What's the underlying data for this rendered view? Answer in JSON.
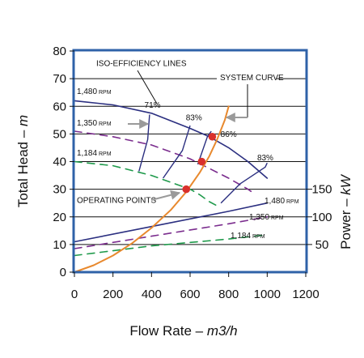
{
  "chart_data": {
    "type": "line",
    "xlabel": {
      "main": "Flow Rate – ",
      "unit": "m3/h"
    },
    "ylabel_left": {
      "main": "Total Head – ",
      "unit": "m"
    },
    "ylabel_right": {
      "main": "Power – ",
      "unit": "kW"
    },
    "xlim": [
      0,
      1200
    ],
    "ylim": [
      0,
      80
    ],
    "x_ticks": [
      "0",
      "200",
      "400",
      "600",
      "800",
      "1000",
      "1200"
    ],
    "y_ticks_left": [
      "0",
      "10",
      "20",
      "30",
      "40",
      "50",
      "60",
      "70",
      "80"
    ],
    "y_ticks_right": [
      {
        "label": "50",
        "y": 10
      },
      {
        "label": "100",
        "y": 20
      },
      {
        "label": "150",
        "y": 30
      }
    ],
    "grid": "horizontal",
    "series": [
      {
        "name": "1,480 RPM",
        "kind": "head",
        "color": "#2b2f80",
        "dash": "solid",
        "points": [
          [
            0,
            62
          ],
          [
            200,
            60.5
          ],
          [
            400,
            57.5
          ],
          [
            600,
            52
          ],
          [
            700,
            49
          ],
          [
            800,
            45
          ],
          [
            900,
            40
          ],
          [
            1000,
            34
          ]
        ]
      },
      {
        "name": "1,350 RPM",
        "kind": "head",
        "color": "#7b2d8e",
        "dash": "dashed",
        "points": [
          [
            0,
            51
          ],
          [
            200,
            49
          ],
          [
            400,
            46
          ],
          [
            600,
            41
          ],
          [
            700,
            37.5
          ],
          [
            800,
            34
          ],
          [
            900,
            30
          ],
          [
            920,
            29
          ]
        ]
      },
      {
        "name": "1,184 RPM",
        "kind": "head",
        "color": "#1f9a4b",
        "dash": "dashed",
        "points": [
          [
            0,
            40
          ],
          [
            200,
            38.5
          ],
          [
            400,
            35
          ],
          [
            600,
            30
          ],
          [
            650,
            28
          ],
          [
            700,
            25.5
          ],
          [
            740,
            24
          ]
        ]
      },
      {
        "name": "1,480 RPM",
        "kind": "power",
        "color": "#2b2f80",
        "dash": "solid",
        "points": [
          [
            0,
            11
          ],
          [
            400,
            16.5
          ],
          [
            800,
            22
          ],
          [
            1000,
            25
          ]
        ]
      },
      {
        "name": "1,350 RPM",
        "kind": "power",
        "color": "#7b2d8e",
        "dash": "dashed",
        "points": [
          [
            0,
            8.5
          ],
          [
            400,
            13
          ],
          [
            800,
            17.5
          ],
          [
            1000,
            20
          ]
        ]
      },
      {
        "name": "1,184 RPM",
        "kind": "power",
        "color": "#1f9a4b",
        "dash": "dashed",
        "points": [
          [
            0,
            6
          ],
          [
            400,
            9.5
          ],
          [
            800,
            12
          ],
          [
            1000,
            13.5
          ]
        ]
      },
      {
        "name": "System curve",
        "kind": "system",
        "color": "#e8892e",
        "dash": "solid",
        "points": [
          [
            0,
            0
          ],
          [
            100,
            2.5
          ],
          [
            200,
            6
          ],
          [
            300,
            10.5
          ],
          [
            400,
            16
          ],
          [
            500,
            22.5
          ],
          [
            580,
            29
          ],
          [
            650,
            36
          ],
          [
            700,
            42
          ],
          [
            740,
            48
          ],
          [
            780,
            55
          ],
          [
            800,
            60
          ]
        ]
      }
    ],
    "iso_efficiency": [
      {
        "label": "71%",
        "points": [
          [
            335,
            36.5
          ],
          [
            380,
            48
          ],
          [
            390,
            57
          ]
        ]
      },
      {
        "label": "83%",
        "points": [
          [
            460,
            34
          ],
          [
            560,
            44
          ],
          [
            600,
            53
          ]
        ]
      },
      {
        "label": "86%",
        "points": [
          [
            640,
            39
          ],
          [
            690,
            49
          ],
          [
            710,
            51
          ]
        ]
      },
      {
        "label": "83%",
        "points": [
          [
            760,
            25
          ],
          [
            860,
            32
          ],
          [
            990,
            38
          ],
          [
            1000,
            39.5
          ]
        ]
      }
    ],
    "iso_labels": [
      {
        "text": "71%",
        "x": 405,
        "y": 59.5
      },
      {
        "text": "83%",
        "x": 620,
        "y": 55
      },
      {
        "text": "86%",
        "x": 800,
        "y": 49
      },
      {
        "text": "83%",
        "x": 990,
        "y": 40.5
      }
    ],
    "operating_points": [
      {
        "x": 580,
        "y": 30
      },
      {
        "x": 660,
        "y": 40
      },
      {
        "x": 715,
        "y": 49
      }
    ],
    "annotations": [
      {
        "text": "ISO-EFFICIENCY LINES"
      },
      {
        "text": "SYSTEM CURVE"
      },
      {
        "text": "OPERATING POINTS"
      }
    ],
    "rpm_labels_head": [
      {
        "big": "1,480",
        "small": " RPM"
      },
      {
        "big": "1,350",
        "small": " RPM"
      },
      {
        "big": "1,184",
        "small": " RPM"
      }
    ],
    "rpm_labels_power": [
      {
        "big": "1,480",
        "small": " RPM"
      },
      {
        "big": "1,350",
        "small": " RPM"
      },
      {
        "big": "1,184",
        "small": " RPM"
      }
    ],
    "colors": {
      "frame": "#2f62a8",
      "grid": "#111111",
      "operating_point": "#d9302c",
      "arrow": "#9a9a9a"
    }
  }
}
